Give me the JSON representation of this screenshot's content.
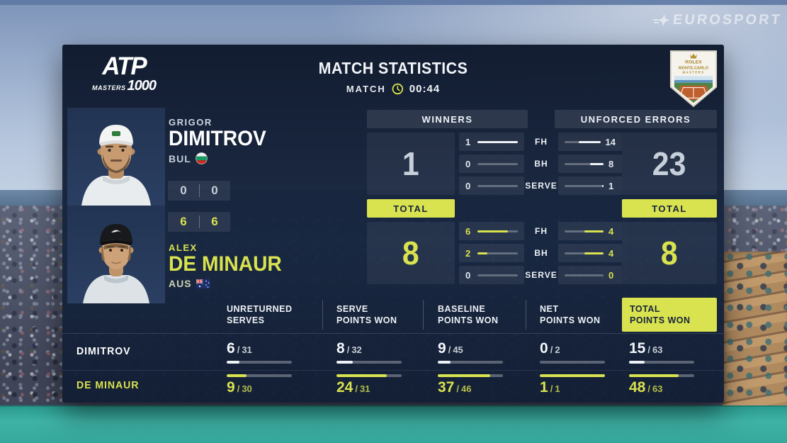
{
  "watermark": {
    "brand": "EUROSPORT"
  },
  "panel": {
    "atp_logo": {
      "word": "ATP",
      "masters": "MASTERS",
      "thousand": "1000"
    },
    "title": "MATCH STATISTICS",
    "clock": {
      "label": "MATCH",
      "time": "00:44"
    },
    "badge": {
      "rolex": "ROLEX",
      "event": "MONTE-CARLO",
      "masters": "MASTERS"
    }
  },
  "players": {
    "p1": {
      "first": "GRIGOR",
      "last": "DIMITROV",
      "country": "BUL",
      "sets": {
        "s1": "0",
        "s2": "0"
      }
    },
    "p2": {
      "first": "ALEX",
      "last": "DE MINAUR",
      "country": "AUS",
      "sets": {
        "s1": "6",
        "s2": "6"
      }
    }
  },
  "mid": {
    "winners_label": "WINNERS",
    "errors_label": "UNFORCED ERRORS",
    "total_label": "TOTAL",
    "row_labels": [
      "FH",
      "BH",
      "SERVE"
    ],
    "p1": {
      "winners_total": 1,
      "errors_total": 23,
      "winners": [
        1,
        0,
        0
      ],
      "errors": [
        14,
        8,
        1
      ]
    },
    "p2": {
      "winners_total": 8,
      "errors_total": 8,
      "winners": [
        6,
        2,
        0
      ],
      "errors": [
        4,
        4,
        0
      ]
    }
  },
  "table": {
    "sep": "/",
    "columns": [
      {
        "l1": "UNRETURNED",
        "l2": "SERVES"
      },
      {
        "l1": "SERVE",
        "l2": "POINTS WON"
      },
      {
        "l1": "BASELINE",
        "l2": "POINTS WON"
      },
      {
        "l1": "NET",
        "l2": "POINTS WON"
      },
      {
        "l1": "TOTAL",
        "l2": "POINTS WON"
      }
    ],
    "rows": [
      {
        "player": "DIMITROV",
        "values": [
          {
            "won": 6,
            "of": 31
          },
          {
            "won": 8,
            "of": 32
          },
          {
            "won": 9,
            "of": 45
          },
          {
            "won": 0,
            "of": 2
          },
          {
            "won": 15,
            "of": 63
          }
        ]
      },
      {
        "player": "DE MINAUR",
        "values": [
          {
            "won": 9,
            "of": 30
          },
          {
            "won": 24,
            "of": 31
          },
          {
            "won": 37,
            "of": 46
          },
          {
            "won": 1,
            "of": 1
          },
          {
            "won": 48,
            "of": 63
          }
        ]
      }
    ]
  },
  "colors": {
    "accent": "#d9e24f",
    "panel_navy": "#15223c"
  }
}
